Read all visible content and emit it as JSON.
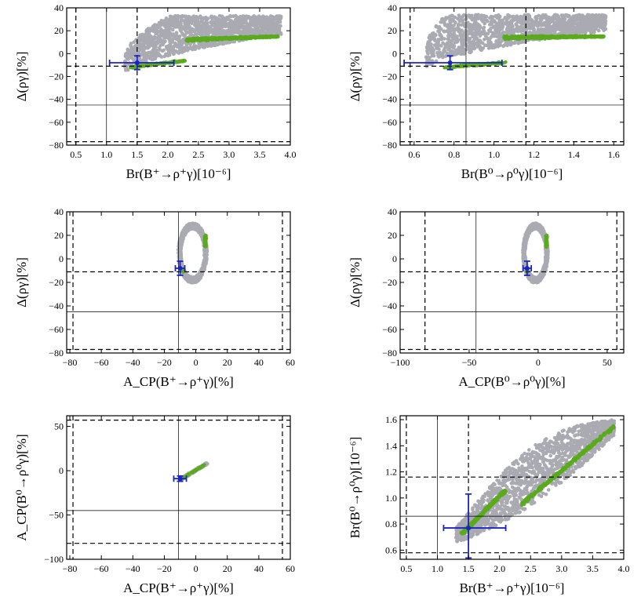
{
  "colors": {
    "scan_points": "#aaaab2",
    "allowed_points": "#5aaa1e",
    "measurement": "#1a24c4",
    "frame": "#000000"
  },
  "chart_data": [
    {
      "type": "scatter",
      "id": "p1",
      "xlabel": "Br(B⁺→ρ⁺γ)[10⁻⁶]",
      "ylabel": "Δ(ργ)[%]",
      "xlim": [
        0.35,
        4.0
      ],
      "ylim": [
        -80,
        40
      ],
      "xticks": [
        0.5,
        1.0,
        1.5,
        2.0,
        2.5,
        3.0,
        3.5,
        4.0
      ],
      "xticklabels": [
        "0.5",
        "1.0",
        "1.5",
        "2.0",
        "2.5",
        "3.0",
        "3.5",
        "4.0"
      ],
      "yticks": [
        -80,
        -60,
        -40,
        -20,
        0,
        20,
        40
      ],
      "yticklabels": [
        "−80",
        "−60",
        "−40",
        "−20",
        "0",
        "20",
        "40"
      ],
      "solid_lines": {
        "x": [
          1.0
        ],
        "y": [
          -45
        ]
      },
      "dashed_lines": {
        "x": [
          0.5,
          1.5
        ],
        "y": [
          -11,
          -77
        ]
      },
      "measurement": {
        "x": 1.5,
        "xerr": [
          0.45,
          0.6
        ],
        "y": -8,
        "yerr": [
          6,
          6
        ]
      },
      "scan_region": [
        [
          1.4,
          -20
        ],
        [
          1.8,
          -10
        ],
        [
          2.2,
          5
        ],
        [
          3.2,
          20
        ],
        [
          3.85,
          18
        ],
        [
          3.6,
          28
        ],
        [
          2.8,
          34
        ],
        [
          2.0,
          30
        ],
        [
          1.6,
          10
        ],
        [
          1.35,
          -5
        ],
        [
          1.25,
          -15
        ]
      ],
      "allowed_band": [
        [
          1.4,
          -12
        ],
        [
          2.3,
          -6
        ],
        [
          2.3,
          12
        ],
        [
          3.8,
          15
        ]
      ]
    },
    {
      "type": "scatter",
      "id": "p2",
      "xlabel": "Br(B⁰→ρ⁰γ)[10⁻⁶]",
      "ylabel": "Δ(ργ)[%]",
      "xlim": [
        0.53,
        1.65
      ],
      "ylim": [
        -80,
        40
      ],
      "xticks": [
        0.6,
        0.8,
        1.0,
        1.2,
        1.4,
        1.6
      ],
      "xticklabels": [
        "0.6",
        "0.8",
        "1.0",
        "1.2",
        "1.4",
        "1.6"
      ],
      "yticks": [
        -80,
        -60,
        -40,
        -20,
        0,
        20,
        40
      ],
      "yticklabels": [
        "−80",
        "−60",
        "−40",
        "−20",
        "0",
        "20",
        "40"
      ],
      "solid_lines": {
        "x": [
          0.86
        ],
        "y": [
          -45
        ]
      },
      "dashed_lines": {
        "x": [
          0.58,
          1.16
        ],
        "y": [
          -11,
          -77
        ]
      },
      "measurement": {
        "x": 0.78,
        "xerr": [
          0.23,
          0.26
        ],
        "y": -8,
        "yerr": [
          6,
          6
        ]
      },
      "scan_region": [
        [
          0.7,
          -15
        ],
        [
          0.75,
          -5
        ],
        [
          0.85,
          5
        ],
        [
          1.1,
          20
        ],
        [
          1.55,
          18
        ],
        [
          1.5,
          26
        ],
        [
          1.2,
          33
        ],
        [
          0.85,
          34
        ],
        [
          0.72,
          20
        ],
        [
          0.66,
          -5
        ]
      ],
      "allowed_band": [
        [
          0.75,
          -12
        ],
        [
          1.05,
          -8
        ],
        [
          1.05,
          14
        ],
        [
          1.55,
          15
        ]
      ]
    },
    {
      "type": "scatter",
      "id": "p3",
      "xlabel": "A_CP(B⁺→ρ⁺γ)[%]",
      "ylabel": "Δ(ργ)[%]",
      "xlim": [
        -82,
        60
      ],
      "ylim": [
        -80,
        40
      ],
      "xticks": [
        -80,
        -60,
        -40,
        -20,
        0,
        20,
        40,
        60
      ],
      "xticklabels": [
        "−80",
        "−60",
        "−40",
        "−20",
        "0",
        "20",
        "40",
        "60"
      ],
      "yticks": [
        -80,
        -60,
        -40,
        -20,
        0,
        20,
        40
      ],
      "yticklabels": [
        "−80",
        "−60",
        "−40",
        "−20",
        "0",
        "20",
        "40"
      ],
      "solid_lines": {
        "x": [
          -11
        ],
        "y": [
          -45
        ]
      },
      "dashed_lines": {
        "x": [
          -78,
          55
        ],
        "y": [
          -11,
          -77
        ]
      },
      "measurement": {
        "x": -10,
        "xerr": [
          3,
          3
        ],
        "y": -8,
        "yerr": [
          6,
          6
        ]
      },
      "ellipse": {
        "cx": -2,
        "cy": 5,
        "rx": 9,
        "ry": 25
      },
      "allowed_band": [
        [
          6,
          10
        ],
        [
          7,
          20
        ],
        [
          -8,
          -10
        ]
      ]
    },
    {
      "type": "scatter",
      "id": "p4",
      "xlabel": "A_CP(B⁰→ρ⁰γ)[%]",
      "ylabel": "Δ(ργ)[%]",
      "xlim": [
        -100,
        62
      ],
      "ylim": [
        -80,
        40
      ],
      "xticks": [
        -100,
        -50,
        0,
        50
      ],
      "xticklabels": [
        "−100",
        "−50",
        "0",
        "50"
      ],
      "yticks": [
        -80,
        -60,
        -40,
        -20,
        0,
        20,
        40
      ],
      "yticklabels": [
        "−80",
        "−60",
        "−40",
        "−20",
        "0",
        "20",
        "40"
      ],
      "solid_lines": {
        "x": [
          -45
        ],
        "y": [
          -45
        ]
      },
      "dashed_lines": {
        "x": [
          -82,
          57
        ],
        "y": [
          -11,
          -77
        ]
      },
      "measurement": {
        "x": -8,
        "xerr": [
          3,
          3
        ],
        "y": -8,
        "yerr": [
          6,
          6
        ]
      },
      "ellipse": {
        "cx": -2,
        "cy": 5,
        "rx": 9,
        "ry": 25
      },
      "allowed_band": [
        [
          6,
          10
        ],
        [
          7,
          20
        ],
        [
          -8,
          -10
        ]
      ]
    },
    {
      "type": "scatter",
      "id": "p5",
      "xlabel": "A_CP(B⁺→ρ⁺γ)[%]",
      "ylabel": "A_CP(B⁰→ρ⁰γ)[%]",
      "xlim": [
        -82,
        60
      ],
      "ylim": [
        -100,
        62
      ],
      "xticks": [
        -80,
        -60,
        -40,
        -20,
        0,
        20,
        40,
        60
      ],
      "xticklabels": [
        "−80",
        "−60",
        "−40",
        "−20",
        "0",
        "20",
        "40",
        "60"
      ],
      "yticks": [
        -100,
        -50,
        0,
        50
      ],
      "yticklabels": [
        "−100",
        "−50",
        "0",
        "50"
      ],
      "solid_lines": {
        "x": [
          -11
        ],
        "y": [
          -45
        ]
      },
      "dashed_lines": {
        "x": [
          -78,
          55
        ],
        "y": [
          -82,
          57
        ]
      },
      "measurement": {
        "x": -10,
        "xerr": [
          4,
          4
        ],
        "y": -9,
        "yerr": [
          3,
          3
        ]
      },
      "scan_segment": [
        [
          -10,
          -10
        ],
        [
          7,
          8
        ]
      ],
      "allowed_band": [
        [
          -10,
          -10
        ],
        [
          7,
          8
        ]
      ]
    },
    {
      "type": "scatter",
      "id": "p6",
      "xlabel": "Br(B⁺→ρ⁺γ)[10⁻⁶]",
      "ylabel": "Br(B⁰→ρ⁰γ)[10⁻⁶]",
      "xlim": [
        0.4,
        4.0
      ],
      "ylim": [
        0.53,
        1.63
      ],
      "xticks": [
        0.5,
        1.0,
        1.5,
        2.0,
        2.5,
        3.0,
        3.5,
        4.0
      ],
      "xticklabels": [
        "0.5",
        "1.0",
        "1.5",
        "2.0",
        "2.5",
        "3.0",
        "3.5",
        "4.0"
      ],
      "yticks": [
        0.6,
        0.8,
        1.0,
        1.2,
        1.4,
        1.6
      ],
      "yticklabels": [
        "0.6",
        "0.8",
        "1.0",
        "1.2",
        "1.4",
        "1.6"
      ],
      "solid_lines": {
        "x": [
          1.0
        ],
        "y": [
          0.86
        ]
      },
      "dashed_lines": {
        "x": [
          0.5,
          1.5
        ],
        "y": [
          0.58,
          1.16
        ]
      },
      "measurement": {
        "x": 1.5,
        "xerr": [
          0.4,
          0.6
        ],
        "y": 0.77,
        "yerr": [
          0.23,
          0.26
        ]
      },
      "scan_region": [
        [
          1.3,
          0.72
        ],
        [
          2.0,
          0.9
        ],
        [
          3.0,
          1.2
        ],
        [
          3.85,
          1.55
        ],
        [
          3.3,
          1.42
        ],
        [
          2.5,
          1.28
        ],
        [
          2.0,
          1.18
        ],
        [
          1.6,
          0.95
        ],
        [
          1.3,
          0.8
        ]
      ],
      "allowed_band": [
        [
          1.4,
          0.73
        ],
        [
          2.1,
          1.06
        ],
        [
          2.35,
          0.95
        ],
        [
          3.85,
          1.55
        ]
      ]
    }
  ]
}
